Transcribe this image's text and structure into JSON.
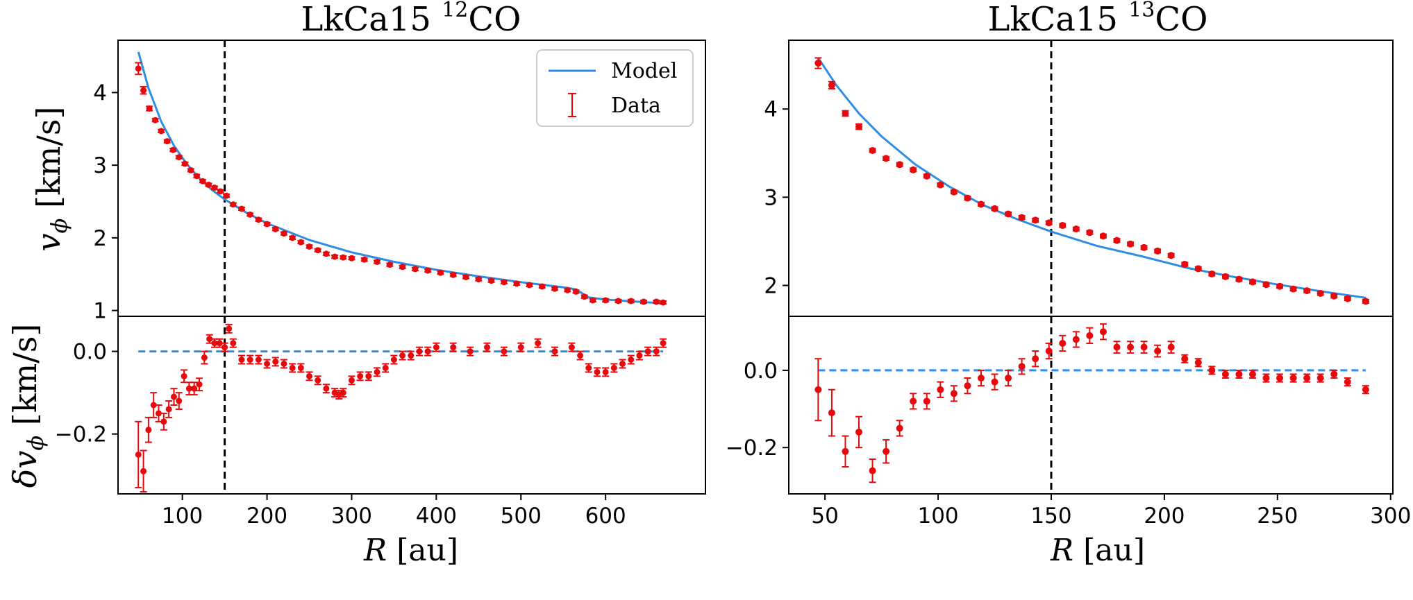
{
  "colors": {
    "model": "#2e8ee6",
    "data": "#e8090c",
    "axis": "#000000",
    "marker_line": "#000000"
  },
  "legend": {
    "model_label": "Model",
    "data_label": "Data",
    "placement": "upper right of left top panel"
  },
  "axes_labels": {
    "left_top_ylabel": "v_φ [km/s]",
    "left_bottom_ylabel": "δv_φ [km/s]",
    "xlabel": "R [au]"
  },
  "chart_data": [
    {
      "type": "scatter",
      "title": "LkCa15 12CO",
      "title_main": "LkCa15 ",
      "title_sup": "12",
      "title_end": "CO",
      "xlabel": "R [au]",
      "xlim": [
        24,
        718
      ],
      "xticks": [
        100,
        200,
        300,
        400,
        500,
        600
      ],
      "vline_x": 150,
      "top": {
        "ylabel": "v_φ [km/s]",
        "ylim": [
          0.92,
          4.72
        ],
        "yticks": [
          1,
          2,
          3,
          4
        ],
        "model": {
          "x": [
            48,
            60,
            75,
            90,
            105,
            120,
            135,
            150,
            175,
            200,
            250,
            300,
            350,
            400,
            450,
            500,
            550,
            565,
            580,
            600,
            640,
            668
          ],
          "y": [
            4.56,
            4.06,
            3.6,
            3.27,
            3.02,
            2.82,
            2.66,
            2.53,
            2.35,
            2.2,
            1.97,
            1.8,
            1.67,
            1.56,
            1.47,
            1.39,
            1.32,
            1.29,
            1.18,
            1.15,
            1.12,
            1.1
          ]
        },
        "data": {
          "x": [
            48,
            54,
            61,
            68,
            75,
            82,
            89,
            96,
            103,
            110,
            117,
            124,
            131,
            138,
            145,
            152,
            160,
            170,
            180,
            190,
            200,
            210,
            220,
            230,
            240,
            250,
            260,
            270,
            280,
            290,
            300,
            315,
            330,
            345,
            360,
            375,
            390,
            405,
            420,
            435,
            450,
            465,
            480,
            495,
            510,
            525,
            540,
            555,
            565,
            575,
            585,
            600,
            615,
            630,
            645,
            660,
            668
          ],
          "y": [
            4.33,
            4.03,
            3.78,
            3.62,
            3.47,
            3.33,
            3.21,
            3.11,
            3.02,
            2.93,
            2.85,
            2.78,
            2.73,
            2.69,
            2.64,
            2.58,
            2.46,
            2.4,
            2.32,
            2.25,
            2.19,
            2.12,
            2.06,
            2.0,
            1.94,
            1.88,
            1.83,
            1.78,
            1.74,
            1.73,
            1.72,
            1.7,
            1.67,
            1.63,
            1.6,
            1.57,
            1.55,
            1.52,
            1.49,
            1.46,
            1.43,
            1.41,
            1.39,
            1.37,
            1.35,
            1.33,
            1.3,
            1.28,
            1.26,
            1.19,
            1.14,
            1.14,
            1.13,
            1.13,
            1.12,
            1.12,
            1.11
          ],
          "err": [
            0.08,
            0.05,
            0.03,
            0.02,
            0.02,
            0.02,
            0.02,
            0.02,
            0.02,
            0.02,
            0.02,
            0.02,
            0.02,
            0.02,
            0.02,
            0.02,
            0.02,
            0.02,
            0.02,
            0.02,
            0.02,
            0.02,
            0.02,
            0.02,
            0.02,
            0.02,
            0.02,
            0.02,
            0.02,
            0.02,
            0.02,
            0.02,
            0.02,
            0.02,
            0.02,
            0.02,
            0.02,
            0.02,
            0.02,
            0.02,
            0.02,
            0.02,
            0.02,
            0.02,
            0.02,
            0.02,
            0.02,
            0.02,
            0.02,
            0.02,
            0.02,
            0.02,
            0.02,
            0.02,
            0.02,
            0.02,
            0.02
          ]
        }
      },
      "bottom": {
        "ylabel": "δv_φ [km/s]",
        "ylim": [
          -0.345,
          0.085
        ],
        "yticks": [
          -0.2,
          0.0
        ],
        "ytick_labels": [
          "−0.2",
          "0.0"
        ],
        "zero_line": {
          "x": [
            48,
            668
          ],
          "y": [
            0,
            0
          ]
        },
        "data": {
          "x": [
            48,
            54,
            60,
            66,
            72,
            78,
            84,
            90,
            96,
            102,
            108,
            114,
            120,
            126,
            132,
            138,
            144,
            150,
            155,
            160,
            170,
            180,
            190,
            200,
            210,
            220,
            230,
            240,
            250,
            260,
            270,
            280,
            285,
            290,
            300,
            310,
            320,
            330,
            340,
            350,
            360,
            370,
            380,
            390,
            400,
            420,
            440,
            460,
            480,
            500,
            520,
            540,
            560,
            570,
            580,
            590,
            600,
            610,
            620,
            630,
            640,
            650,
            660,
            668
          ],
          "y": [
            -0.25,
            -0.29,
            -0.19,
            -0.13,
            -0.15,
            -0.17,
            -0.14,
            -0.11,
            -0.12,
            -0.06,
            -0.09,
            -0.09,
            -0.08,
            -0.015,
            0.03,
            0.02,
            0.02,
            0.01,
            0.055,
            0.02,
            -0.02,
            -0.02,
            -0.02,
            -0.03,
            -0.025,
            -0.03,
            -0.04,
            -0.04,
            -0.06,
            -0.07,
            -0.09,
            -0.1,
            -0.105,
            -0.1,
            -0.07,
            -0.06,
            -0.06,
            -0.05,
            -0.04,
            -0.02,
            -0.01,
            -0.01,
            0.0,
            0.0,
            0.01,
            0.01,
            0.0,
            0.01,
            0.0,
            0.01,
            0.02,
            0.0,
            0.01,
            -0.01,
            -0.04,
            -0.05,
            -0.05,
            -0.04,
            -0.03,
            -0.02,
            -0.01,
            0.0,
            0.0,
            0.02
          ],
          "err": [
            0.08,
            0.05,
            0.03,
            0.03,
            0.02,
            0.02,
            0.02,
            0.02,
            0.02,
            0.015,
            0.015,
            0.015,
            0.015,
            0.015,
            0.01,
            0.01,
            0.01,
            0.01,
            0.01,
            0.01,
            0.01,
            0.01,
            0.01,
            0.01,
            0.01,
            0.01,
            0.01,
            0.01,
            0.01,
            0.01,
            0.01,
            0.01,
            0.01,
            0.01,
            0.01,
            0.01,
            0.01,
            0.01,
            0.01,
            0.01,
            0.01,
            0.01,
            0.01,
            0.01,
            0.01,
            0.01,
            0.01,
            0.01,
            0.01,
            0.01,
            0.01,
            0.01,
            0.01,
            0.01,
            0.01,
            0.01,
            0.01,
            0.01,
            0.01,
            0.01,
            0.01,
            0.01,
            0.01,
            0.01
          ]
        }
      }
    },
    {
      "type": "scatter",
      "title": "LkCa15 13CO",
      "title_main": "LkCa15 ",
      "title_sup": "13",
      "title_end": "CO",
      "xlabel": "R [au]",
      "xlim": [
        34,
        301
      ],
      "xticks": [
        50,
        100,
        150,
        200,
        250,
        300
      ],
      "vline_x": 150,
      "top": {
        "ylabel": "",
        "ylim": [
          1.65,
          4.78
        ],
        "yticks": [
          2,
          3,
          4
        ],
        "model": {
          "x": [
            47,
            55,
            65,
            75,
            90,
            105,
            120,
            135,
            150,
            170,
            190,
            210,
            230,
            250,
            270,
            289
          ],
          "y": [
            4.58,
            4.27,
            3.95,
            3.69,
            3.37,
            3.12,
            2.91,
            2.75,
            2.61,
            2.45,
            2.33,
            2.2,
            2.1,
            2.01,
            1.93,
            1.86
          ]
        },
        "data": {
          "x": [
            47,
            53,
            59,
            65,
            71,
            77,
            83,
            89,
            95,
            101,
            107,
            113,
            119,
            125,
            131,
            137,
            143,
            149,
            155,
            161,
            167,
            173,
            179,
            185,
            191,
            197,
            203,
            209,
            215,
            221,
            227,
            233,
            239,
            245,
            251,
            257,
            263,
            269,
            275,
            281,
            289
          ],
          "y": [
            4.52,
            4.27,
            3.95,
            3.8,
            3.53,
            3.44,
            3.37,
            3.31,
            3.24,
            3.14,
            3.06,
            2.99,
            2.92,
            2.87,
            2.81,
            2.77,
            2.74,
            2.71,
            2.68,
            2.64,
            2.6,
            2.56,
            2.51,
            2.47,
            2.43,
            2.39,
            2.34,
            2.24,
            2.19,
            2.13,
            2.1,
            2.07,
            2.04,
            2.01,
            1.99,
            1.96,
            1.94,
            1.91,
            1.88,
            1.85,
            1.82
          ],
          "err": [
            0.06,
            0.04,
            0.03,
            0.03,
            0.02,
            0.02,
            0.02,
            0.02,
            0.02,
            0.02,
            0.02,
            0.02,
            0.02,
            0.02,
            0.02,
            0.02,
            0.02,
            0.02,
            0.02,
            0.02,
            0.02,
            0.02,
            0.02,
            0.02,
            0.02,
            0.02,
            0.02,
            0.02,
            0.02,
            0.02,
            0.02,
            0.02,
            0.02,
            0.02,
            0.02,
            0.02,
            0.02,
            0.02,
            0.02,
            0.02,
            0.02
          ]
        }
      },
      "bottom": {
        "ylabel": "",
        "ylim": [
          -0.32,
          0.14
        ],
        "yticks": [
          -0.2,
          0.0
        ],
        "ytick_labels": [
          "−0.2",
          "0.0"
        ],
        "zero_line": {
          "x": [
            47,
            289
          ],
          "y": [
            0,
            0
          ]
        },
        "data": {
          "x": [
            47,
            53,
            59,
            65,
            71,
            77,
            83,
            89,
            95,
            101,
            107,
            113,
            119,
            125,
            131,
            137,
            143,
            149,
            155,
            161,
            167,
            173,
            179,
            185,
            191,
            197,
            203,
            209,
            215,
            221,
            227,
            233,
            239,
            245,
            251,
            257,
            263,
            269,
            275,
            281,
            289
          ],
          "y": [
            -0.05,
            -0.11,
            -0.21,
            -0.16,
            -0.26,
            -0.21,
            -0.15,
            -0.08,
            -0.08,
            -0.05,
            -0.06,
            -0.04,
            -0.02,
            -0.03,
            -0.02,
            0.01,
            0.03,
            0.05,
            0.07,
            0.08,
            0.09,
            0.1,
            0.06,
            0.06,
            0.06,
            0.05,
            0.06,
            0.03,
            0.02,
            0.0,
            -0.01,
            -0.01,
            -0.01,
            -0.02,
            -0.02,
            -0.02,
            -0.02,
            -0.02,
            -0.01,
            -0.03,
            -0.05
          ],
          "err": [
            0.08,
            0.06,
            0.04,
            0.04,
            0.03,
            0.03,
            0.02,
            0.02,
            0.02,
            0.02,
            0.02,
            0.02,
            0.02,
            0.02,
            0.02,
            0.02,
            0.02,
            0.02,
            0.02,
            0.02,
            0.02,
            0.02,
            0.015,
            0.015,
            0.015,
            0.015,
            0.015,
            0.01,
            0.01,
            0.01,
            0.01,
            0.01,
            0.01,
            0.01,
            0.01,
            0.01,
            0.01,
            0.01,
            0.01,
            0.01,
            0.01
          ]
        }
      }
    }
  ]
}
